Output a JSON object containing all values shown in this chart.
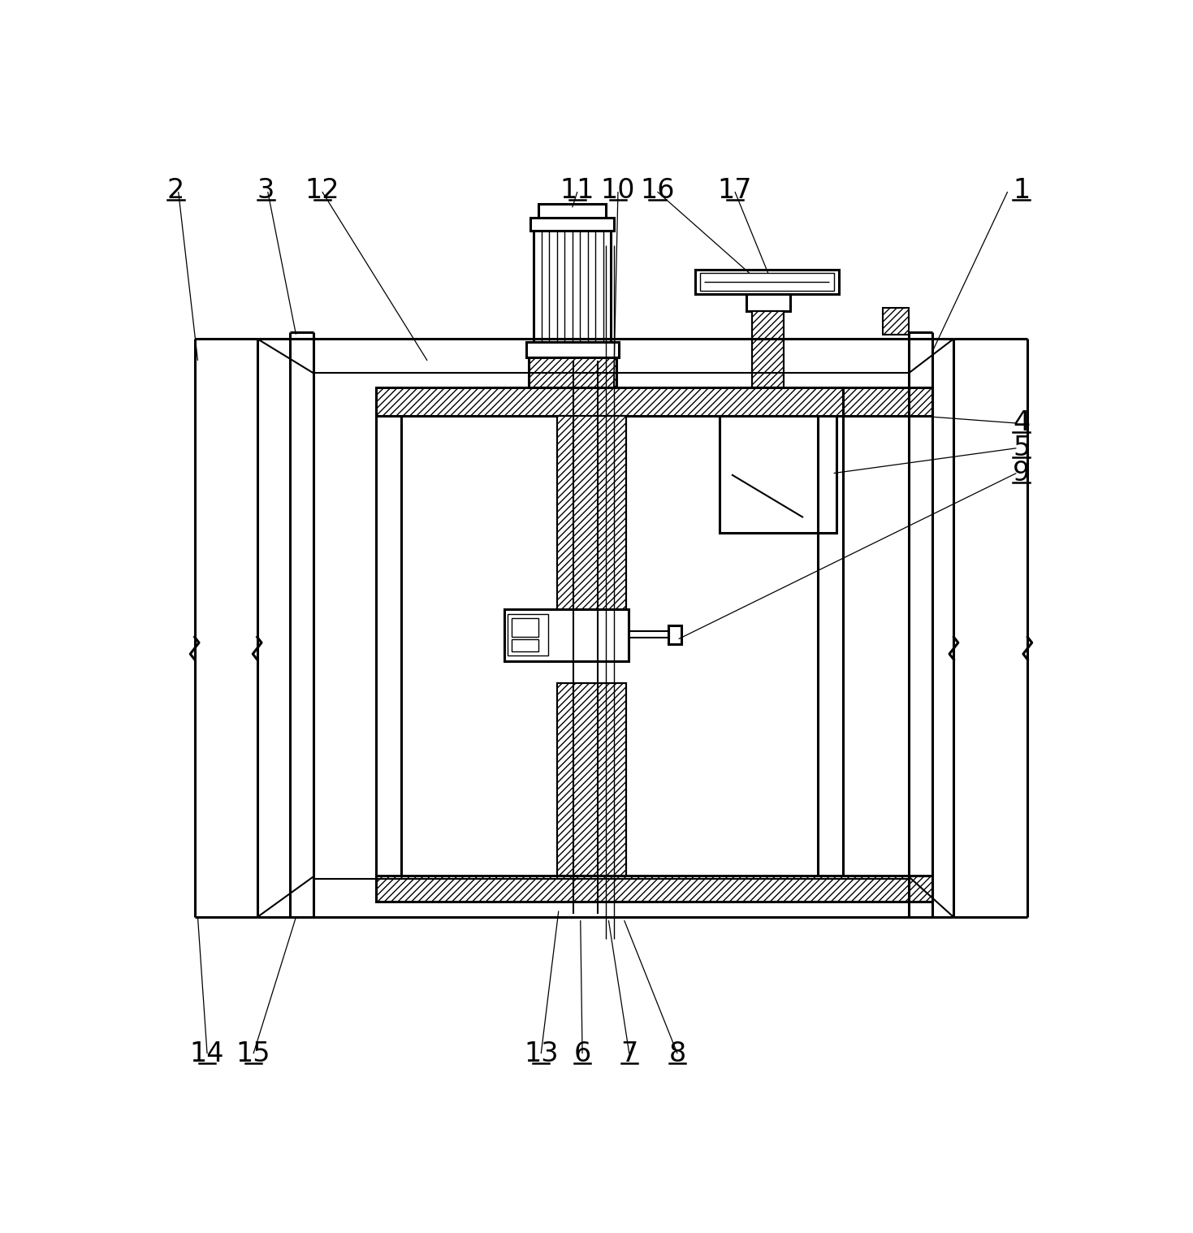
{
  "bg_color": "#ffffff",
  "line_color": "#000000",
  "figsize": [
    14.69,
    15.18
  ],
  "lw_thick": 2.2,
  "lw_med": 1.5,
  "lw_thin": 1.0,
  "lw_ref": 0.9
}
